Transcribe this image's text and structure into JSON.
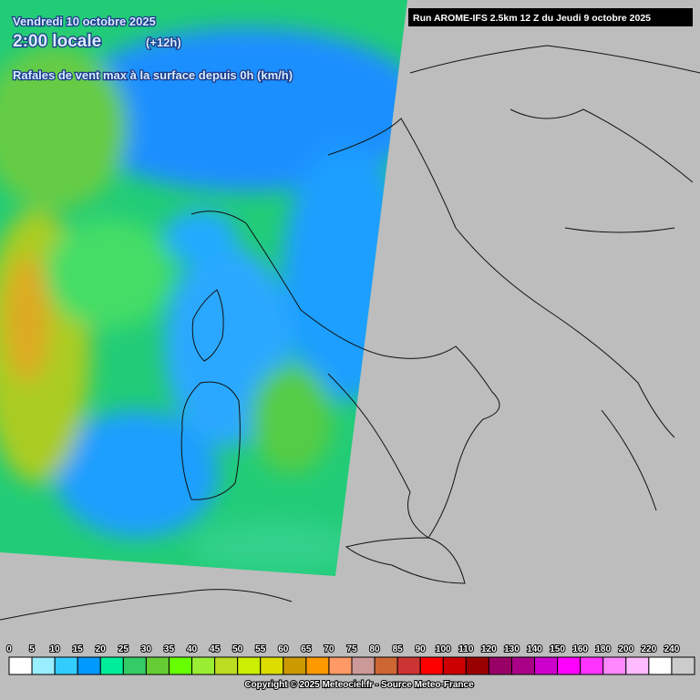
{
  "header": {
    "date": "Vendredi 10 octobre 2025",
    "time": "2:00 locale",
    "lead": "(+12h)",
    "subtitle": "Rafales de vent max à la surface depuis 0h (km/h)",
    "run": "Run AROME-IFS 2.5km 12 Z du Jeudi 9 octobre 2025"
  },
  "legend": {
    "ticks": [
      0,
      5,
      10,
      15,
      20,
      25,
      30,
      35,
      40,
      45,
      50,
      55,
      60,
      65,
      70,
      75,
      80,
      85,
      90,
      100,
      110,
      120,
      130,
      140,
      150,
      160,
      180,
      200,
      220,
      240
    ],
    "colors": [
      "#ffffff",
      "#99eeff",
      "#33ccff",
      "#0099ff",
      "#00ee99",
      "#33cc66",
      "#66cc33",
      "#66ff00",
      "#99ee33",
      "#bbdd22",
      "#ccee00",
      "#dddd00",
      "#cc9900",
      "#ff9900",
      "#ff9966",
      "#cc9999",
      "#cc6633",
      "#cc3333",
      "#ff0000",
      "#cc0000",
      "#990000",
      "#990066",
      "#aa0088",
      "#cc00cc",
      "#ff00ff",
      "#ff33ff",
      "#ff88ff",
      "#ffbbff",
      "#ffffff",
      "#cccccc"
    ]
  },
  "footer": {
    "copyright": "Copyright © 2025 Meteociel.fr - Source Meteo-France"
  }
}
